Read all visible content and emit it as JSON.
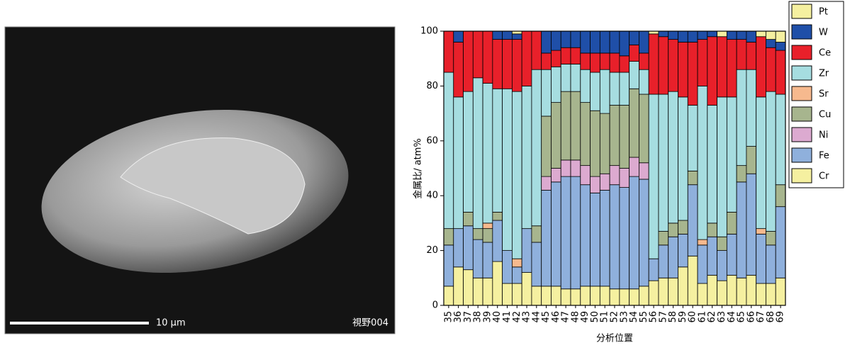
{
  "image": {
    "scale_bar": "10 μm",
    "field": "視野004"
  },
  "chart_data": {
    "type": "stacked_bar",
    "ylabel": "金属比/ atm%",
    "xlabel": "分析位置",
    "categories": [
      "35",
      "36",
      "37",
      "38",
      "39",
      "40",
      "41",
      "42",
      "43",
      "44",
      "45",
      "46",
      "47",
      "48",
      "49",
      "50",
      "51",
      "52",
      "53",
      "54",
      "55",
      "56",
      "57",
      "58",
      "59",
      "60",
      "61",
      "62",
      "63",
      "64",
      "65",
      "66",
      "67",
      "68",
      "69"
    ],
    "series": [
      {
        "name": "Cr",
        "color": "#f5f0a0",
        "values": [
          7,
          14,
          13,
          10,
          10,
          16,
          8,
          8,
          12,
          7,
          7,
          7,
          6,
          6,
          7,
          7,
          7,
          6,
          6,
          6,
          7,
          9,
          10,
          10,
          14,
          18,
          8,
          11,
          9,
          11,
          10,
          11,
          8,
          8,
          10
        ]
      },
      {
        "name": "Fe",
        "color": "#8fb0dc",
        "values": [
          15,
          14,
          16,
          14,
          13,
          15,
          12,
          6,
          16,
          16,
          35,
          38,
          41,
          41,
          37,
          34,
          35,
          38,
          37,
          41,
          39,
          8,
          12,
          15,
          12,
          26,
          14,
          14,
          11,
          15,
          35,
          37,
          18,
          14,
          26
        ]
      },
      {
        "name": "Ni",
        "color": "#dcaad0",
        "values": [
          0,
          0,
          0,
          0,
          0,
          0,
          0,
          0,
          0,
          0,
          5,
          5,
          6,
          6,
          7,
          6,
          6,
          7,
          7,
          7,
          6,
          0,
          0,
          0,
          0,
          0,
          0,
          0,
          0,
          0,
          0,
          0,
          0,
          0,
          0
        ]
      },
      {
        "name": "Cu",
        "color": "#a7b58e",
        "values": [
          6,
          0,
          5,
          4,
          5,
          3,
          0,
          0,
          0,
          6,
          22,
          24,
          25,
          25,
          23,
          24,
          22,
          22,
          23,
          25,
          25,
          0,
          5,
          5,
          5,
          5,
          0,
          5,
          5,
          8,
          6,
          10,
          0,
          5,
          8
        ]
      },
      {
        "name": "Sr",
        "color": "#f6b98e",
        "values": [
          0,
          0,
          0,
          0,
          2,
          0,
          0,
          3,
          0,
          0,
          0,
          0,
          0,
          0,
          0,
          0,
          0,
          0,
          0,
          0,
          0,
          0,
          0,
          0,
          0,
          0,
          2,
          0,
          0,
          0,
          0,
          0,
          2,
          0,
          0
        ]
      },
      {
        "name": "Zr",
        "color": "#a6dde0",
        "values": [
          57,
          48,
          44,
          55,
          51,
          45,
          59,
          61,
          52,
          57,
          17,
          13,
          10,
          10,
          12,
          14,
          16,
          12,
          12,
          10,
          9,
          60,
          50,
          48,
          45,
          24,
          56,
          43,
          51,
          42,
          35,
          28,
          48,
          51,
          33
        ]
      },
      {
        "name": "Ce",
        "color": "#e8202a",
        "values": [
          15,
          20,
          22,
          17,
          19,
          18,
          18,
          19,
          20,
          14,
          6,
          6,
          6,
          6,
          6,
          7,
          6,
          7,
          6,
          6,
          6,
          22,
          21,
          19,
          20,
          23,
          17,
          25,
          22,
          21,
          11,
          10,
          22,
          16,
          16
        ]
      },
      {
        "name": "W",
        "color": "#1f4fa8",
        "values": [
          0,
          4,
          0,
          0,
          0,
          3,
          3,
          2,
          0,
          0,
          8,
          7,
          6,
          6,
          8,
          8,
          8,
          8,
          9,
          5,
          8,
          0,
          2,
          3,
          4,
          4,
          3,
          2,
          0,
          3,
          3,
          4,
          0,
          3,
          3
        ]
      },
      {
        "name": "Pt",
        "color": "#f5f0a0",
        "values": [
          0,
          0,
          0,
          0,
          0,
          0,
          0,
          1,
          0,
          0,
          0,
          0,
          0,
          0,
          0,
          0,
          0,
          0,
          0,
          0,
          0,
          1,
          0,
          0,
          0,
          0,
          0,
          0,
          2,
          0,
          0,
          0,
          2,
          3,
          4
        ]
      }
    ],
    "ylim": [
      0,
      100
    ],
    "yticks": [
      0,
      20,
      40,
      60,
      80,
      100
    ],
    "legend": "upper right"
  }
}
